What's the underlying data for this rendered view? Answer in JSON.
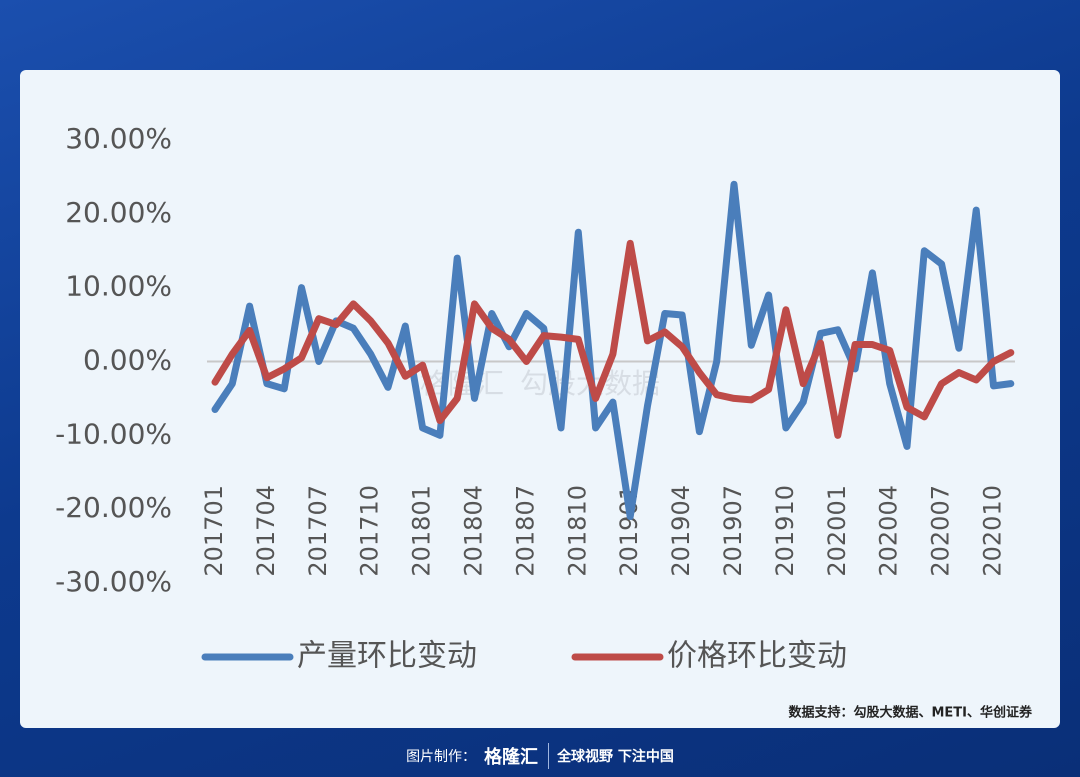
{
  "chart_data": {
    "type": "line",
    "categories": [
      "201701",
      null,
      null,
      "201704",
      null,
      null,
      "201707",
      null,
      null,
      "201710",
      null,
      null,
      "201801",
      null,
      null,
      "201804",
      null,
      null,
      "201807",
      null,
      null,
      "201810",
      null,
      null,
      "201901",
      null,
      null,
      "201904",
      null,
      null,
      "201907",
      null,
      null,
      "201910",
      null,
      null,
      "202001",
      null,
      null,
      "202004",
      null,
      null,
      "202007",
      null,
      null,
      "202010",
      null
    ],
    "series": [
      {
        "name": "产量环比变动",
        "color": "#4a7ebb",
        "values": [
          -6.5,
          -3,
          7.5,
          -3,
          -3.7,
          10,
          0,
          5.5,
          4.5,
          1,
          -3.5,
          4.8,
          -9,
          -10,
          14,
          -5,
          6.5,
          2,
          6.5,
          4.5,
          -9,
          17.5,
          -9,
          -5.5,
          -21,
          -6,
          6.5,
          6.3,
          -9.5,
          0,
          24,
          2.2,
          9,
          -9,
          -5.5,
          3.8,
          4.3,
          -1,
          12,
          -3,
          -11.5,
          15,
          13.2,
          1.8,
          20.5,
          -3.3,
          -3
        ]
      },
      {
        "name": "价格环比变动",
        "color": "#be4b48",
        "values": [
          -2.8,
          1,
          4.2,
          -2.2,
          -1,
          0.5,
          5.8,
          5,
          7.8,
          5.5,
          2.5,
          -2,
          -0.5,
          -8,
          -5,
          7.8,
          4.5,
          3,
          0,
          3.5,
          3.3,
          3,
          -5,
          1,
          16,
          2.8,
          4,
          2,
          -1.5,
          -4.5,
          -5,
          -5.2,
          -3.8,
          7,
          -3,
          2.5,
          -10,
          2.3,
          2.3,
          1.5,
          -6.2,
          -7.5,
          -3,
          -1.5,
          -2.5,
          0,
          1.2
        ]
      }
    ],
    "ylim": [
      -30,
      30
    ],
    "yticks": [
      {
        "value": -30,
        "label": "-30.00%"
      },
      {
        "value": -20,
        "label": "-20.00%"
      },
      {
        "value": -10,
        "label": "-10.00%"
      },
      {
        "value": 0,
        "label": "0.00%"
      },
      {
        "value": 10,
        "label": "10.00%"
      },
      {
        "value": 20,
        "label": "20.00%"
      },
      {
        "value": 30,
        "label": "30.00%"
      }
    ],
    "legend": "bottom",
    "source": "数据支持：勾股大数据、METI、华创证券"
  },
  "watermark": {
    "brand": "格隆汇",
    "text": "勾股大数据"
  },
  "footer": {
    "made_by": "图片制作：",
    "brand": "格隆汇",
    "slogan": "全球视野 下注中国"
  }
}
